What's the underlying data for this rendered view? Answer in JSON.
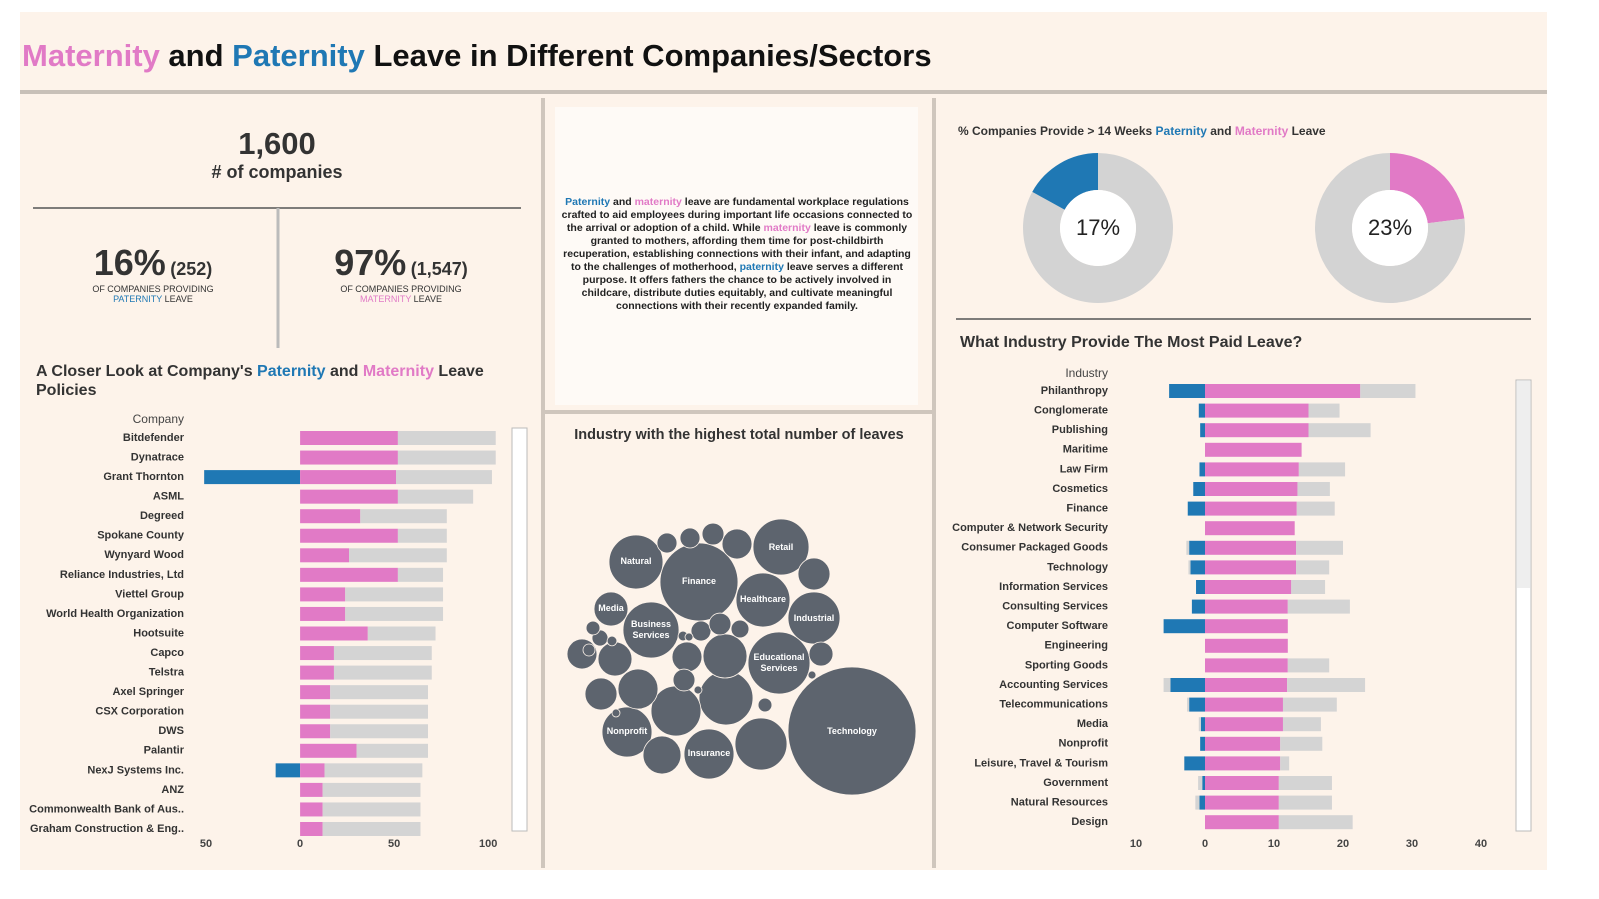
{
  "header": {
    "title": [
      {
        "text": "Maternity",
        "color": "#e17ac6"
      },
      {
        "text": " and "
      },
      {
        "text": "Paternity",
        "color": "#1f78b4"
      },
      {
        "text": " Leave in Different Companies/Sectors"
      }
    ]
  },
  "kpis": {
    "total": {
      "value": "1,600",
      "label": "# of companies"
    },
    "paternity": {
      "percent": "16%",
      "count": "(252)",
      "caption": "OF COMPANIES PROVIDING",
      "caption2": [
        {
          "text": "PATERNITY",
          "color": "#1f78b4"
        },
        {
          "text": " LEAVE"
        }
      ]
    },
    "maternity": {
      "percent": "97%",
      "count": "(1,547)",
      "caption": "OF COMPANIES PROVIDING",
      "caption2": [
        {
          "text": "MATERNITY",
          "color": "#e17ac6"
        },
        {
          "text": " LEAVE"
        }
      ]
    }
  },
  "intro": [
    {
      "text": "Paternity",
      "color": "#1f78b4"
    },
    {
      "text": " and "
    },
    {
      "text": "maternity",
      "color": "#e17ac6"
    },
    {
      "text": " leave are fundamental workplace regulations crafted to aid employees during important life occasions connected to the arrival or adoption of a child. While "
    },
    {
      "text": "maternity",
      "color": "#e17ac6"
    },
    {
      "text": " leave is commonly granted to mothers, affording them time for post-childbirth recuperation, establishing connections with their infant, and adapting to the challenges of motherhood, "
    },
    {
      "text": "paternity",
      "color": "#1f78b4"
    },
    {
      "text": " leave serves a different purpose. It offers fathers the chance to be actively involved in childcare, distribute duties equitably, and cultivate meaningful connections with their recently expanded family."
    }
  ],
  "chart_data": [
    {
      "type": "pie",
      "title": [
        {
          "text": "% Companies Provide > 14 Weeks "
        },
        {
          "text": "Paternity",
          "color": "#1f78b4"
        },
        {
          "text": " and "
        },
        {
          "text": "Maternity",
          "color": "#e17ac6"
        },
        {
          "text": " Leave"
        }
      ],
      "values": [
        83,
        17
      ],
      "value_labels": [
        null,
        "17%"
      ],
      "colors": [
        "#d3d3d3",
        "#1f78b4"
      ]
    },
    {
      "type": "pie",
      "values": [
        23,
        77
      ],
      "value_labels": [
        "23%",
        null
      ],
      "colors": [
        "#e17ac6",
        "#d3d3d3"
      ]
    },
    {
      "type": "bar",
      "orientation": "horizontal",
      "stacked": true,
      "title": [
        {
          "text": "A Closer Look at Company's "
        },
        {
          "text": "Paternity",
          "color": "#1f78b4"
        },
        {
          "text": " and "
        },
        {
          "text": "Maternity",
          "color": "#e17ac6"
        },
        {
          "text": " Leave Policies"
        }
      ],
      "y_label": "Company",
      "categories": [
        "Bitdefender",
        "Dynatrace",
        "Grant Thornton",
        "ASML",
        "Degreed",
        "Spokane County",
        "Wynyard Wood",
        "Reliance Industries, Ltd",
        "Viettel Group",
        "World Health Organization",
        "Hootsuite",
        "Capco",
        "Telstra",
        "Axel Springer",
        "CSX Corporation",
        "DWS",
        "Palantir",
        "NexJ Systems Inc.",
        "ANZ",
        "Commonwealth Bank of Aus..",
        "Graham Construction & Eng.."
      ],
      "series": [
        {
          "color": "#1f78b4",
          "values": [
            0,
            0,
            -51,
            0,
            0,
            0,
            0,
            0,
            0,
            0,
            0,
            0,
            0,
            0,
            0,
            0,
            0,
            -13,
            0,
            0,
            0
          ]
        },
        {
          "color": "#e17ac6",
          "values": [
            52,
            52,
            51,
            52,
            32,
            52,
            26,
            52,
            24,
            24,
            36,
            18,
            18,
            16,
            16,
            16,
            30,
            13,
            12,
            12,
            12
          ]
        },
        {
          "color": "#d4d4d4",
          "values": [
            52,
            52,
            51,
            40,
            46,
            26,
            52,
            24,
            52,
            52,
            36,
            52,
            52,
            52,
            52,
            52,
            38,
            52,
            52,
            52,
            52
          ]
        }
      ],
      "xlim": [
        -58,
        110
      ],
      "xticks": [
        {
          "value": -50,
          "label": "50"
        },
        0,
        50,
        100
      ]
    },
    {
      "type": "bubble",
      "title": "Industry with the highest total number of leaves",
      "categories": [
        "Technology",
        "Finance",
        "Retail",
        "Healthcare",
        "Natural",
        "Industrial",
        "Educational Services",
        "Business Services",
        "Nonprofit",
        "Insurance",
        "Media",
        null,
        null,
        null,
        null,
        null,
        null,
        null,
        null,
        null,
        null,
        null,
        null,
        null,
        null,
        null,
        null,
        null,
        null,
        null,
        null,
        null,
        null,
        null,
        null,
        null,
        null,
        null,
        null,
        null,
        null
      ],
      "values": [
        1024,
        380,
        196,
        182,
        182,
        169,
        240,
        196,
        156,
        156,
        72,
        182,
        169,
        156,
        121,
        100,
        72,
        64,
        90,
        56,
        56,
        64,
        56,
        30,
        25,
        25,
        25,
        30,
        20,
        12,
        36,
        30,
        16,
        12,
        9,
        6,
        6,
        4,
        4,
        4,
        4
      ],
      "color": "#5d646e"
    },
    {
      "type": "bar",
      "orientation": "horizontal",
      "stacked": true,
      "title": "What Industry Provide The Most Paid Leave?",
      "y_label": "Industry",
      "categories": [
        "Philanthropy",
        "Conglomerate",
        "Publishing",
        "Maritime",
        "Law Firm",
        "Cosmetics",
        "Finance",
        "Computer & Network Security",
        "Consumer Packaged Goods",
        "Technology",
        "Information Services",
        "Consulting Services",
        "Computer Software",
        "Engineering",
        "Sporting Goods",
        "Accounting Services",
        "Telecommunications",
        "Media",
        "Nonprofit",
        "Leisure, Travel & Tourism",
        "Government",
        "Natural Resources",
        "Design"
      ],
      "series": [
        {
          "color": "#1f78b4",
          "values": [
            -5.2,
            -0.9,
            -0.7,
            0,
            -0.8,
            -1.7,
            -2.5,
            0,
            -2.3,
            -2.1,
            -1.3,
            -1.9,
            -6,
            0,
            0,
            -5,
            -2.3,
            -0.6,
            -0.7,
            -3,
            -0.4,
            -0.8,
            0
          ]
        },
        {
          "color": "#d4d4d4",
          "values": [
            0,
            0,
            0,
            0,
            0,
            0,
            0,
            0,
            -0.4,
            -0.3,
            0,
            0,
            0,
            0,
            0,
            -1,
            -0.3,
            -0.3,
            0,
            0,
            -0.6,
            -0.6,
            0
          ]
        },
        {
          "color": "#e17ac6",
          "values": [
            22.5,
            15,
            15,
            14,
            13.6,
            13.4,
            13.3,
            13,
            13.2,
            13.2,
            12.5,
            12,
            12,
            12,
            12,
            11.9,
            11.3,
            11.3,
            10.9,
            10.9,
            10.7,
            10.7,
            10.7
          ]
        },
        {
          "color": "#d4d4d4",
          "values": [
            8,
            4.5,
            9,
            0,
            6.7,
            4.7,
            5.5,
            0,
            6.8,
            4.8,
            4.9,
            9,
            0,
            0,
            6,
            11.3,
            7.8,
            5.5,
            6.1,
            1.3,
            7.7,
            7.7,
            10.7
          ]
        }
      ],
      "xlim": [
        -12,
        44
      ],
      "xticks": [
        {
          "value": -10,
          "label": "10"
        },
        0,
        10,
        20,
        30,
        40
      ]
    }
  ]
}
